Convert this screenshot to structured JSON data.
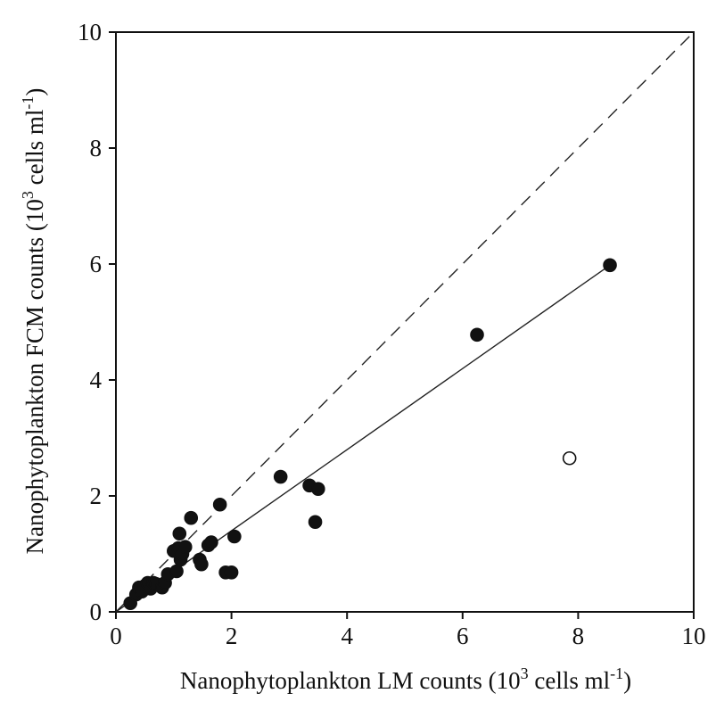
{
  "chart_data": {
    "type": "scatter",
    "xlabel": {
      "prefix": "Nanophytoplankton LM counts (10",
      "exp": "3",
      "mid": " cells ml",
      "unit_exp": "-1",
      "suffix": ")"
    },
    "ylabel": {
      "prefix": "Nanophytoplankton FCM counts (10",
      "exp": "3",
      "mid": " cells ml",
      "unit_exp": "-1",
      "suffix": ")"
    },
    "xlim": [
      0,
      10
    ],
    "ylim": [
      0,
      10
    ],
    "xticks": [
      "0",
      "2",
      "4",
      "6",
      "8",
      "10"
    ],
    "yticks": [
      "0",
      "2",
      "4",
      "6",
      "8",
      "10"
    ],
    "grid": false,
    "series": [
      {
        "marker": "filled-circle",
        "color": "#111111",
        "points": [
          [
            0.25,
            0.15
          ],
          [
            0.35,
            0.3
          ],
          [
            0.4,
            0.42
          ],
          [
            0.45,
            0.35
          ],
          [
            0.5,
            0.45
          ],
          [
            0.55,
            0.5
          ],
          [
            0.6,
            0.4
          ],
          [
            0.65,
            0.5
          ],
          [
            0.7,
            0.48
          ],
          [
            0.8,
            0.42
          ],
          [
            0.85,
            0.5
          ],
          [
            0.9,
            0.65
          ],
          [
            1.0,
            1.05
          ],
          [
            1.05,
            0.7
          ],
          [
            1.08,
            1.1
          ],
          [
            1.1,
            1.35
          ],
          [
            1.12,
            0.9
          ],
          [
            1.15,
            1.0
          ],
          [
            1.2,
            1.12
          ],
          [
            1.3,
            1.62
          ],
          [
            1.45,
            0.9
          ],
          [
            1.48,
            0.82
          ],
          [
            1.6,
            1.15
          ],
          [
            1.65,
            1.2
          ],
          [
            1.8,
            1.85
          ],
          [
            1.9,
            0.68
          ],
          [
            2.0,
            0.68
          ],
          [
            2.05,
            1.3
          ],
          [
            2.85,
            2.33
          ],
          [
            3.35,
            2.18
          ],
          [
            3.45,
            1.55
          ],
          [
            3.5,
            2.12
          ],
          [
            6.25,
            4.78
          ],
          [
            8.55,
            5.98
          ]
        ]
      },
      {
        "marker": "open-circle",
        "color": "#111111",
        "points": [
          [
            7.85,
            2.65
          ]
        ]
      }
    ],
    "lines": [
      {
        "style": "dashed",
        "from": [
          0,
          0
        ],
        "to": [
          10,
          10
        ]
      },
      {
        "style": "solid",
        "from": [
          0,
          0
        ],
        "to": [
          8.55,
          5.98
        ]
      }
    ]
  }
}
